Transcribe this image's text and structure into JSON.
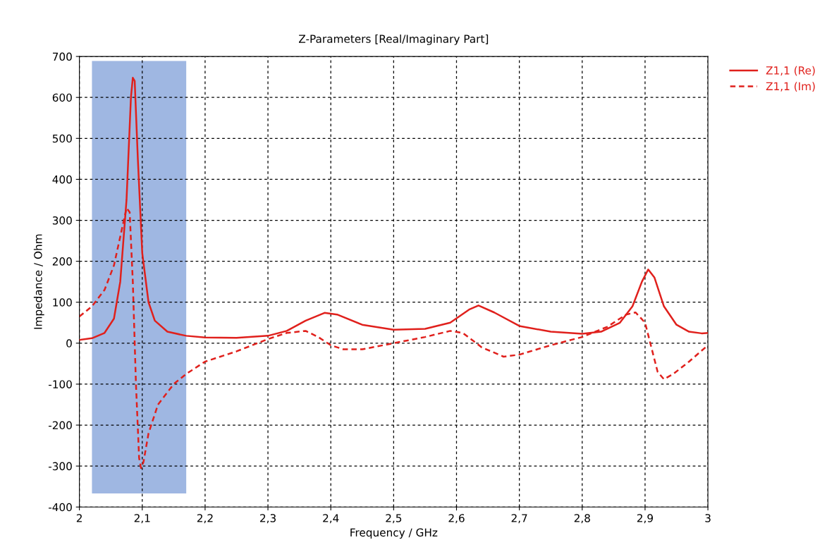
{
  "chart_data": {
    "type": "line",
    "title": "Z-Parameters [Real/Imaginary Part]",
    "xlabel": "Frequency / GHz",
    "ylabel": "Impedance / Ohm",
    "series": [
      {
        "name": "Z1,1 (Re)",
        "color": "#e0201c",
        "line_style": "solid",
        "x": [
          2.0,
          2.02,
          2.04,
          2.055,
          2.065,
          2.075,
          2.082,
          2.085,
          2.088,
          2.093,
          2.1,
          2.11,
          2.12,
          2.14,
          2.17,
          2.2,
          2.25,
          2.3,
          2.33,
          2.36,
          2.39,
          2.41,
          2.45,
          2.5,
          2.55,
          2.59,
          2.62,
          2.635,
          2.66,
          2.7,
          2.75,
          2.8,
          2.83,
          2.86,
          2.88,
          2.895,
          2.905,
          2.915,
          2.93,
          2.95,
          2.97,
          2.99,
          3.0
        ],
        "values": [
          8,
          12,
          25,
          60,
          150,
          350,
          600,
          648,
          640,
          450,
          220,
          100,
          55,
          28,
          18,
          14,
          13,
          18,
          30,
          55,
          74,
          70,
          45,
          33,
          35,
          50,
          82,
          92,
          75,
          42,
          28,
          23,
          28,
          50,
          90,
          150,
          180,
          160,
          90,
          45,
          28,
          24,
          25
        ]
      },
      {
        "name": "Z1,1 (Im)",
        "color": "#e0201c",
        "line_style": "dashed",
        "x": [
          2.0,
          2.02,
          2.04,
          2.055,
          2.065,
          2.075,
          2.08,
          2.085,
          2.09,
          2.095,
          2.098,
          2.102,
          2.11,
          2.125,
          2.15,
          2.17,
          2.2,
          2.25,
          2.3,
          2.33,
          2.36,
          2.38,
          2.4,
          2.42,
          2.45,
          2.5,
          2.55,
          2.59,
          2.61,
          2.64,
          2.675,
          2.7,
          2.75,
          2.8,
          2.84,
          2.87,
          2.885,
          2.9,
          2.91,
          2.92,
          2.93,
          2.945,
          2.97,
          3.0
        ],
        "values": [
          65,
          90,
          130,
          190,
          260,
          330,
          320,
          150,
          -100,
          -280,
          -305,
          -290,
          -220,
          -150,
          -100,
          -75,
          -45,
          -20,
          10,
          25,
          30,
          15,
          -5,
          -15,
          -15,
          0,
          15,
          30,
          25,
          -10,
          -33,
          -28,
          -5,
          15,
          40,
          70,
          75,
          50,
          -10,
          -70,
          -88,
          -75,
          -45,
          -5
        ]
      }
    ],
    "bands": [
      {
        "axis": "x",
        "from": 2.02,
        "to": 2.17,
        "color": "#7f9fd8"
      }
    ],
    "xlim": [
      2,
      3
    ],
    "ylim": [
      -400,
      700
    ],
    "xticks": [
      2,
      {
        "value": 2.1,
        "label": "2,1"
      },
      {
        "value": 2.2,
        "label": "2,2"
      },
      {
        "value": 2.3,
        "label": "2,3"
      },
      {
        "value": 2.4,
        "label": "2,4"
      },
      {
        "value": 2.5,
        "label": "2,5"
      },
      {
        "value": 2.6,
        "label": "2,6"
      },
      {
        "value": 2.7,
        "label": "2,7"
      },
      {
        "value": 2.8,
        "label": "2,8"
      },
      {
        "value": 2.9,
        "label": "2,9"
      },
      3
    ],
    "yticks": [
      -400,
      -300,
      -200,
      -100,
      0,
      100,
      200,
      300,
      400,
      500,
      600,
      700
    ],
    "grid": true,
    "legend": "top right",
    "marker": "none"
  }
}
